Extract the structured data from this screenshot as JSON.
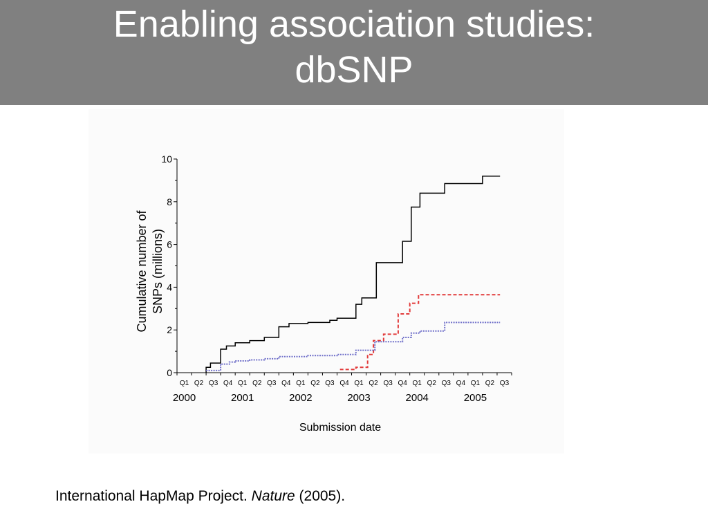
{
  "slide": {
    "title": "Enabling association studies:\ndbSNP",
    "citation": {
      "prefix": "International HapMap Project. ",
      "journal": "Nature",
      "suffix": " (2005)."
    }
  },
  "colors": {
    "title_bar": "#808080",
    "series_black": "#000000",
    "series_red": "#e23b3b",
    "series_blue": "#6f6fc9"
  },
  "chart_data": {
    "type": "line",
    "step": true,
    "ylabel": "Cumulative number of\nSNPs (millions)",
    "xlabel": "Submission date",
    "ylim": [
      0,
      10
    ],
    "yticks": [
      "0",
      "2",
      "4",
      "6",
      "8",
      "10"
    ],
    "xlim": [
      0,
      23
    ],
    "quarter_labels": [
      "Q1",
      "Q2",
      "Q3",
      "Q4",
      "Q1",
      "Q2",
      "Q3",
      "Q4",
      "Q1",
      "Q2",
      "Q3",
      "Q4",
      "Q1",
      "Q2",
      "Q3",
      "Q4",
      "Q1",
      "Q2",
      "Q3",
      "Q4",
      "Q1",
      "Q2",
      "Q3"
    ],
    "year_labels": [
      {
        "label": "2000",
        "quarter": 0.5
      },
      {
        "label": "2001",
        "quarter": 4.5
      },
      {
        "label": "2002",
        "quarter": 8.5
      },
      {
        "label": "2003",
        "quarter": 12.5
      },
      {
        "label": "2004",
        "quarter": 16.5
      },
      {
        "label": "2005",
        "quarter": 20.5
      }
    ],
    "series": [
      {
        "style": "solid",
        "color": "#000000",
        "points": [
          [
            2,
            0
          ],
          [
            2,
            0.25
          ],
          [
            2.3,
            0.25
          ],
          [
            2.3,
            0.45
          ],
          [
            3,
            0.45
          ],
          [
            3,
            1.1
          ],
          [
            3.4,
            1.1
          ],
          [
            3.4,
            1.25
          ],
          [
            4,
            1.25
          ],
          [
            4,
            1.4
          ],
          [
            5,
            1.4
          ],
          [
            5,
            1.5
          ],
          [
            6,
            1.5
          ],
          [
            6,
            1.65
          ],
          [
            7,
            1.65
          ],
          [
            7,
            2.15
          ],
          [
            7.7,
            2.15
          ],
          [
            7.7,
            2.3
          ],
          [
            9,
            2.3
          ],
          [
            9,
            2.35
          ],
          [
            10.5,
            2.35
          ],
          [
            10.5,
            2.45
          ],
          [
            11,
            2.45
          ],
          [
            11,
            2.55
          ],
          [
            12.3,
            2.55
          ],
          [
            12.3,
            3.2
          ],
          [
            12.7,
            3.2
          ],
          [
            12.7,
            3.5
          ],
          [
            13.7,
            3.5
          ],
          [
            13.7,
            5.15
          ],
          [
            15.5,
            5.15
          ],
          [
            15.5,
            6.15
          ],
          [
            16.1,
            6.15
          ],
          [
            16.1,
            7.75
          ],
          [
            16.7,
            7.75
          ],
          [
            16.7,
            8.4
          ],
          [
            18.4,
            8.4
          ],
          [
            18.4,
            8.85
          ],
          [
            21,
            8.85
          ],
          [
            21,
            9.2
          ],
          [
            22.2,
            9.2
          ]
        ]
      },
      {
        "style": "dashed",
        "color": "#e23b3b",
        "points": [
          [
            11.2,
            0.15
          ],
          [
            12.3,
            0.15
          ],
          [
            12.3,
            0.25
          ],
          [
            13.1,
            0.25
          ],
          [
            13.1,
            0.85
          ],
          [
            13.5,
            0.85
          ],
          [
            13.5,
            1.5
          ],
          [
            14.2,
            1.5
          ],
          [
            14.2,
            1.8
          ],
          [
            15.2,
            1.8
          ],
          [
            15.2,
            2.75
          ],
          [
            16.0,
            2.75
          ],
          [
            16.0,
            3.25
          ],
          [
            16.6,
            3.25
          ],
          [
            16.6,
            3.65
          ],
          [
            22.2,
            3.65
          ]
        ]
      },
      {
        "style": "dotted",
        "color": "#6f6fc9",
        "points": [
          [
            2,
            0.1
          ],
          [
            3,
            0.1
          ],
          [
            3,
            0.4
          ],
          [
            3.6,
            0.4
          ],
          [
            3.6,
            0.5
          ],
          [
            4,
            0.5
          ],
          [
            4,
            0.55
          ],
          [
            5,
            0.55
          ],
          [
            5,
            0.6
          ],
          [
            6,
            0.6
          ],
          [
            6,
            0.65
          ],
          [
            7,
            0.65
          ],
          [
            7,
            0.75
          ],
          [
            9,
            0.75
          ],
          [
            9,
            0.8
          ],
          [
            11,
            0.8
          ],
          [
            11,
            0.85
          ],
          [
            12.3,
            0.85
          ],
          [
            12.3,
            1.05
          ],
          [
            13.6,
            1.05
          ],
          [
            13.6,
            1.45
          ],
          [
            15.5,
            1.45
          ],
          [
            15.5,
            1.65
          ],
          [
            16.1,
            1.65
          ],
          [
            16.1,
            1.85
          ],
          [
            16.7,
            1.85
          ],
          [
            16.7,
            1.95
          ],
          [
            18.4,
            1.95
          ],
          [
            18.4,
            2.35
          ],
          [
            22.2,
            2.35
          ]
        ]
      }
    ]
  }
}
